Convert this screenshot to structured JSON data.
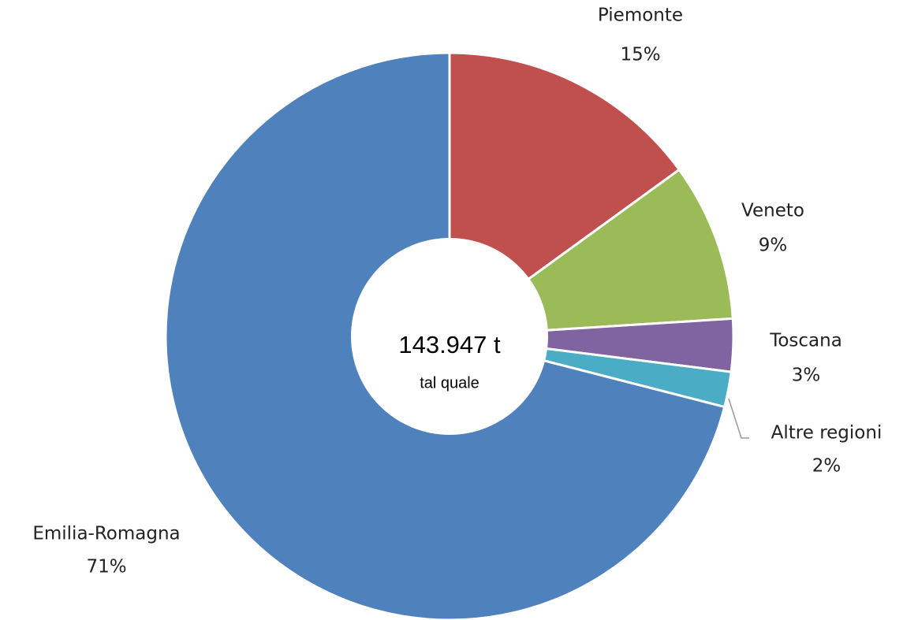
{
  "chart_data": {
    "type": "donut",
    "categories": [
      "Piemonte",
      "Veneto",
      "Toscana",
      "Altre regioni",
      "Emilia-Romagna"
    ],
    "values": [
      15,
      9,
      3,
      2,
      71
    ],
    "value_labels": [
      "15%",
      "9%",
      "3%",
      "2%",
      "71%"
    ],
    "colors": [
      "#c0504d",
      "#9bbb59",
      "#8064a2",
      "#4bacc6",
      "#4f81bd"
    ],
    "center_label": "143.947 t",
    "center_sublabel": "tal quale"
  }
}
